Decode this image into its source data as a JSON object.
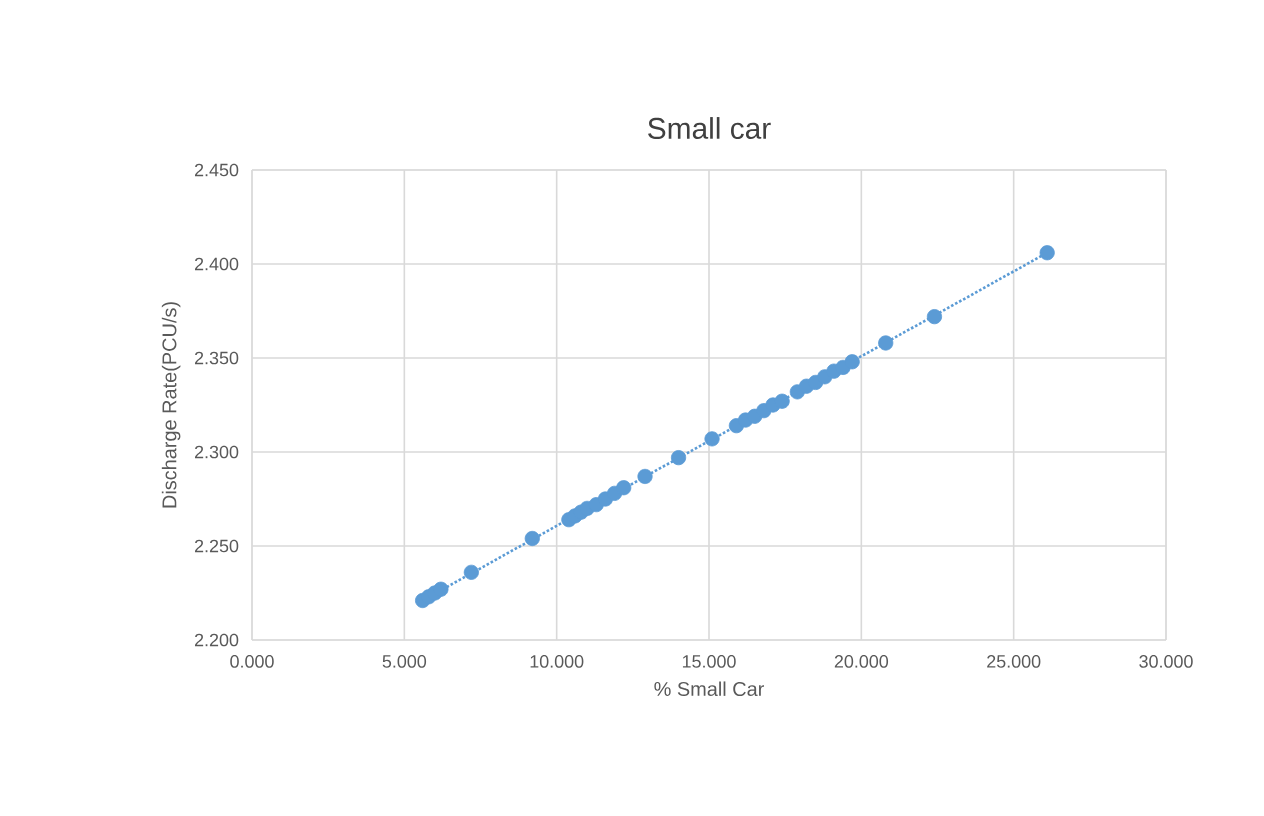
{
  "chart_data": {
    "type": "scatter",
    "title": "Small car",
    "xlabel": "% Small Car",
    "ylabel": "Discharge Rate(PCU/s)",
    "xlim": [
      0,
      30
    ],
    "ylim": [
      2.2,
      2.45
    ],
    "xticks": [
      {
        "value": 0,
        "label": "0.000"
      },
      {
        "value": 5,
        "label": "5.000"
      },
      {
        "value": 10,
        "label": "10.000"
      },
      {
        "value": 15,
        "label": "15.000"
      },
      {
        "value": 20,
        "label": "20.000"
      },
      {
        "value": 25,
        "label": "25.000"
      },
      {
        "value": 30,
        "label": "30.000"
      }
    ],
    "yticks": [
      {
        "value": 2.2,
        "label": "2.200"
      },
      {
        "value": 2.25,
        "label": "2.250"
      },
      {
        "value": 2.3,
        "label": "2.300"
      },
      {
        "value": 2.35,
        "label": "2.350"
      },
      {
        "value": 2.4,
        "label": "2.400"
      },
      {
        "value": 2.45,
        "label": "2.450"
      }
    ],
    "grid": true,
    "marker": "circle",
    "series": [
      {
        "color": "#5b9bd5",
        "x": [
          5.6,
          5.8,
          6.0,
          6.2,
          7.2,
          9.2,
          10.4,
          10.6,
          10.8,
          11.0,
          11.3,
          11.6,
          11.9,
          12.2,
          12.9,
          14.0,
          15.1,
          15.9,
          16.2,
          16.5,
          16.8,
          17.1,
          17.4,
          17.9,
          18.2,
          18.5,
          18.8,
          19.1,
          19.4,
          19.7,
          20.8,
          22.4,
          26.1
        ],
        "values": [
          2.221,
          2.223,
          2.225,
          2.227,
          2.236,
          2.254,
          2.264,
          2.266,
          2.268,
          2.27,
          2.272,
          2.275,
          2.278,
          2.281,
          2.287,
          2.297,
          2.307,
          2.314,
          2.317,
          2.319,
          2.322,
          2.325,
          2.327,
          2.332,
          2.335,
          2.337,
          2.34,
          2.343,
          2.345,
          2.348,
          2.358,
          2.372,
          2.406
        ]
      },
      {
        "type": "line",
        "color": "#5b9bd5",
        "marker": "none",
        "line_style": "dotted",
        "x": [
          5.6,
          26.1
        ],
        "values": [
          2.221,
          2.406
        ]
      }
    ]
  }
}
